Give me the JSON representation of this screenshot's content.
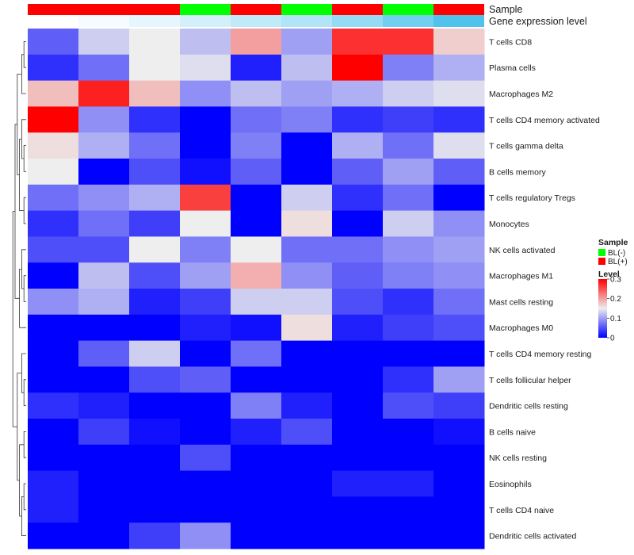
{
  "chart_data": {
    "type": "heatmap",
    "annotation_labels": [
      "Sample",
      "Gene expression level"
    ],
    "sample_groups": [
      "BL(+)",
      "BL(+)",
      "BL(+)",
      "BL(-)",
      "BL(+)",
      "BL(-)",
      "BL(+)",
      "BL(-)",
      "BL(+)"
    ],
    "gene_expression_level": [
      0.0,
      0.05,
      0.15,
      0.25,
      0.35,
      0.45,
      0.6,
      0.8,
      1.0
    ],
    "rows": [
      "T cells CD8",
      "Plasma cells",
      "Macrophages M2",
      "T cells CD4 memory activated",
      "T cells gamma delta",
      "B cells memory",
      "T cells regulatory  Tregs",
      "Monocytes",
      "NK cells activated",
      "Macrophages M1",
      "Mast cells resting",
      "Macrophages M0",
      "T cells CD4 memory resting",
      "T cells follicular helper",
      "Dendritic cells resting",
      "B cells naive",
      "NK cells resting",
      "Eosinophils",
      "T cells CD4 naive",
      "Dendritic cells activated"
    ],
    "values": [
      [
        0.06,
        0.13,
        0.15,
        0.12,
        0.2,
        0.1,
        0.27,
        0.27,
        0.17
      ],
      [
        0.03,
        0.07,
        0.15,
        0.14,
        0.02,
        0.12,
        0.3,
        0.08,
        0.11
      ],
      [
        0.18,
        0.28,
        0.18,
        0.09,
        0.12,
        0.1,
        0.11,
        0.13,
        0.14
      ],
      [
        0.3,
        0.09,
        0.03,
        0.0,
        0.07,
        0.08,
        0.03,
        0.04,
        0.03
      ],
      [
        0.16,
        0.11,
        0.07,
        0.0,
        0.08,
        0.0,
        0.11,
        0.07,
        0.14
      ],
      [
        0.15,
        0.0,
        0.05,
        0.01,
        0.06,
        0.0,
        0.06,
        0.1,
        0.06
      ],
      [
        0.07,
        0.09,
        0.11,
        0.26,
        0.0,
        0.13,
        0.03,
        0.07,
        0.0
      ],
      [
        0.03,
        0.07,
        0.04,
        0.15,
        0.0,
        0.16,
        0.0,
        0.13,
        0.09
      ],
      [
        0.05,
        0.05,
        0.15,
        0.08,
        0.15,
        0.07,
        0.07,
        0.09,
        0.1
      ],
      [
        0.0,
        0.12,
        0.05,
        0.1,
        0.19,
        0.09,
        0.06,
        0.08,
        0.09
      ],
      [
        0.09,
        0.11,
        0.02,
        0.04,
        0.13,
        0.13,
        0.05,
        0.03,
        0.07
      ],
      [
        0.0,
        0.0,
        0.0,
        0.02,
        0.01,
        0.16,
        0.02,
        0.04,
        0.05
      ],
      [
        0.0,
        0.06,
        0.13,
        0.0,
        0.07,
        0.0,
        0.0,
        0.0,
        0.0
      ],
      [
        0.0,
        0.0,
        0.05,
        0.06,
        0.0,
        0.0,
        0.0,
        0.03,
        0.1
      ],
      [
        0.03,
        0.02,
        0.0,
        0.0,
        0.08,
        0.02,
        0.0,
        0.05,
        0.04
      ],
      [
        0.0,
        0.04,
        0.01,
        0.0,
        0.02,
        0.05,
        0.0,
        0.0,
        0.01
      ],
      [
        0.0,
        0.0,
        0.0,
        0.05,
        0.0,
        0.0,
        0.0,
        0.0,
        0.0
      ],
      [
        0.02,
        0.0,
        0.0,
        0.0,
        0.0,
        0.0,
        0.02,
        0.02,
        0.0
      ],
      [
        0.02,
        0.0,
        0.0,
        0.0,
        0.0,
        0.0,
        0.0,
        0.0,
        0.0
      ],
      [
        0.0,
        0.0,
        0.04,
        0.09,
        0.0,
        0.0,
        0.0,
        0.0,
        0.0
      ]
    ],
    "color_scale": {
      "low": "#0000ff",
      "mid": "#eeeeee",
      "high": "#ff0000",
      "range": [
        0,
        0.3
      ],
      "mid_value": 0.15
    },
    "legend": {
      "sample_title": "Sample",
      "sample_entries": [
        {
          "label": "BL(-)",
          "color": "#00ff00"
        },
        {
          "label": "BL(+)",
          "color": "#ff0000"
        }
      ],
      "level_title": "Level",
      "level_ticks": [
        "0.3",
        "0.2",
        "0.1",
        "0"
      ],
      "level_tick_values": [
        0.3,
        0.2,
        0.1,
        0
      ]
    },
    "annotation_colors": {
      "BL(-)": "#00ff00",
      "BL(+)": "#ff0000",
      "expression_low": "#ffffff",
      "expression_high": "#4fc3ec"
    }
  }
}
